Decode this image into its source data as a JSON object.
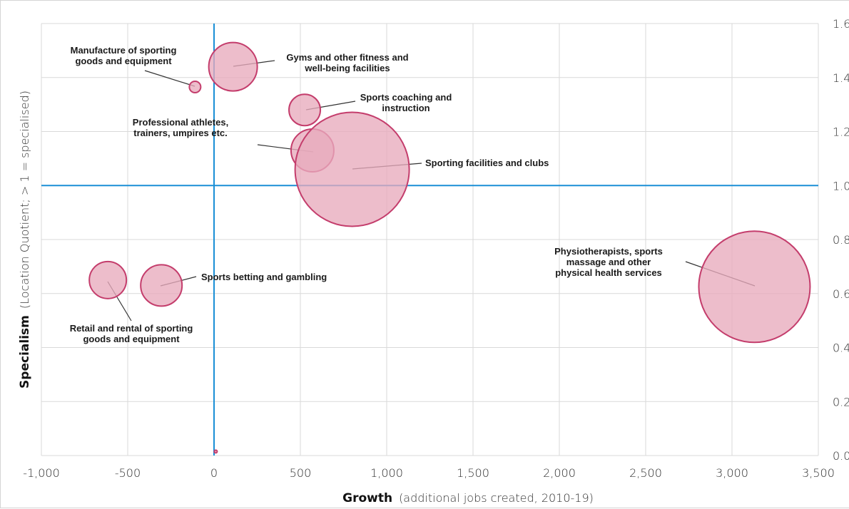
{
  "chart_data": {
    "type": "bubble",
    "xlabel": {
      "bold": "Growth",
      "rest": "(additional jobs created, 2010-19)"
    },
    "ylabel": {
      "bold": "Specialism",
      "rest": "(Location Quotient; > 1 = specialised)"
    },
    "xlim": [
      -1000,
      3500
    ],
    "ylim": [
      0.0,
      1.6
    ],
    "x_ticks": [
      {
        "value": -1000,
        "label": "-1,000"
      },
      {
        "value": -500,
        "label": "-500"
      },
      {
        "value": 0,
        "label": "0"
      },
      {
        "value": 500,
        "label": "500"
      },
      {
        "value": 1000,
        "label": "1,000"
      },
      {
        "value": 1500,
        "label": "1,500"
      },
      {
        "value": 2000,
        "label": "2,000"
      },
      {
        "value": 2500,
        "label": "2,500"
      },
      {
        "value": 3000,
        "label": "3,000"
      },
      {
        "value": 3500,
        "label": "3,500"
      }
    ],
    "y_ticks": [
      {
        "value": 0.0,
        "label": "0.0"
      },
      {
        "value": 0.2,
        "label": "0.2"
      },
      {
        "value": 0.4,
        "label": "0.4"
      },
      {
        "value": 0.6,
        "label": "0.6"
      },
      {
        "value": 0.8,
        "label": "0.8"
      },
      {
        "value": 1.0,
        "label": "1.0"
      },
      {
        "value": 1.2,
        "label": "1.2"
      },
      {
        "value": 1.4,
        "label": "1.4"
      },
      {
        "value": 1.6,
        "label": "1.6"
      }
    ],
    "reference_lines": {
      "x": 0,
      "y": 1.0,
      "color": "#1a8fd6"
    },
    "grid": true,
    "bubble_color": "#e8aabd",
    "bubble_stroke": "#c43d6c",
    "bubbles": [
      {
        "x": -110,
        "y": 1.365,
        "size": 8,
        "label_lines": [
          "Manufacture of sporting",
          "goods and equipment"
        ]
      },
      {
        "x": 110,
        "y": 1.44,
        "size": 34,
        "label_lines": [
          "Gyms and other fitness and",
          "well-being facilities"
        ]
      },
      {
        "x": 525,
        "y": 1.28,
        "size": 22,
        "label_lines": [
          "Sports coaching and",
          "instruction"
        ]
      },
      {
        "x": 570,
        "y": 1.13,
        "size": 30,
        "label_lines": [
          "Professional athletes,",
          "trainers, umpires etc."
        ]
      },
      {
        "x": 800,
        "y": 1.06,
        "size": 80,
        "label_lines": [
          "Sporting facilities and clubs"
        ]
      },
      {
        "x": -615,
        "y": 0.65,
        "size": 26,
        "label_lines": [
          "Retail and rental of sporting",
          "goods and equipment"
        ]
      },
      {
        "x": -305,
        "y": 0.63,
        "size": 29,
        "label_lines": [
          "Sports betting and gambling"
        ]
      },
      {
        "x": 3130,
        "y": 0.625,
        "size": 78,
        "label_lines": [
          "Physiotherapists, sports",
          "massage and other",
          "physical health services"
        ]
      },
      {
        "x": 10,
        "y": 0.015,
        "size": 2,
        "label_lines": []
      }
    ]
  }
}
